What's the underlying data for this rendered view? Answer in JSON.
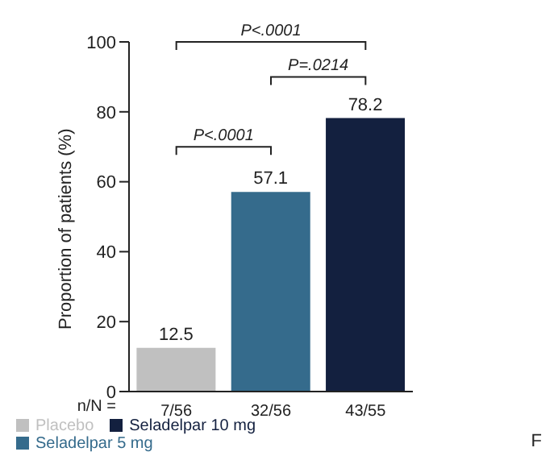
{
  "chart_data": {
    "type": "bar",
    "ylabel": "Proportion of patients (%)",
    "categories": [
      "7/56",
      "32/56",
      "43/55"
    ],
    "stacked": true,
    "series": [
      {
        "name": "Placebo",
        "color": "#c0c0c0",
        "values": [
          12.5,
          null,
          null
        ]
      },
      {
        "name": "Seladelpar 5 mg",
        "color": "#356b8c",
        "values": [
          null,
          57.1,
          null
        ]
      },
      {
        "name": "Seladelpar 10 mg",
        "color": "#13203f",
        "values": [
          null,
          null,
          78.2
        ]
      }
    ],
    "ylim": [
      0,
      100
    ],
    "yticks": [
      0,
      20,
      40,
      60,
      80,
      100
    ],
    "data_labels": true,
    "legend": "bottom",
    "grid": false,
    "annotations": [
      "P<.0001",
      "P=.0214",
      "P<.0001",
      "n/N =",
      "F"
    ]
  }
}
